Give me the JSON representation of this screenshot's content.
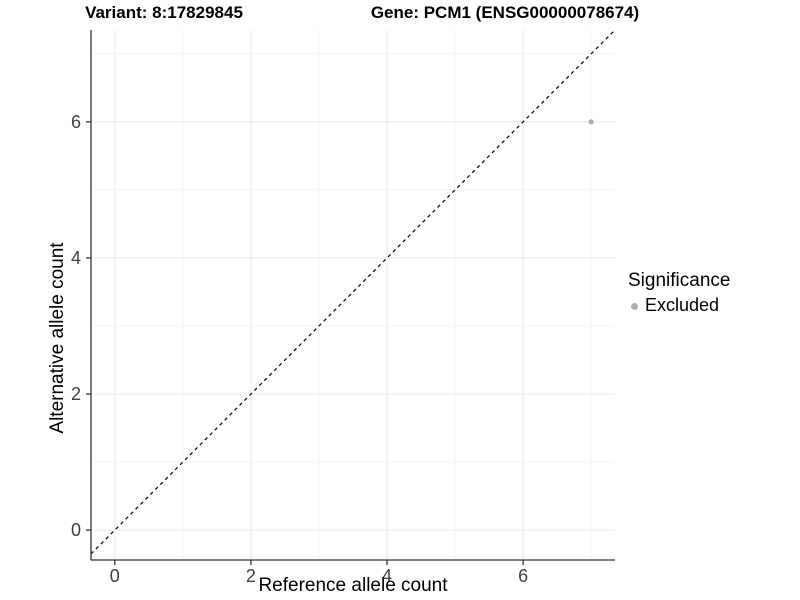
{
  "titles": {
    "variant": "Variant: 8:17829845",
    "gene": "Gene: PCM1 (ENSG00000078674)"
  },
  "legend": {
    "title": "Significance",
    "items": [
      {
        "label": "Excluded",
        "color": "#adadad"
      }
    ]
  },
  "chart_data": {
    "type": "scatter",
    "xlabel": "Reference allele count",
    "ylabel": "Alternative allele count",
    "axis": {
      "x_breaks": [
        0,
        2,
        4,
        6
      ],
      "x_tick_labels": [
        "0",
        "2",
        "4",
        "6"
      ],
      "x_minor_breaks": [
        1,
        3,
        5,
        7
      ],
      "y_breaks": [
        0,
        2,
        4,
        6
      ],
      "y_tick_labels": [
        "0",
        "2",
        "4",
        "6"
      ],
      "y_minor_breaks": [
        1,
        3,
        5,
        7
      ],
      "xlim": [
        -0.35,
        7.35
      ],
      "ylim": [
        -0.44,
        7.35
      ],
      "grid": true
    },
    "legend_position": "right",
    "series": [
      {
        "name": "Excluded",
        "color": "#adadad",
        "point_radius": 2.6,
        "points": [
          {
            "x": 7,
            "y": 6
          }
        ]
      }
    ],
    "reference_line": {
      "type": "identity",
      "slope": 1,
      "intercept": 0,
      "style": "dashed",
      "color": "#000000"
    },
    "colors": {
      "grid_major": "#e9e9e9",
      "grid_minor": "#f4f4f4",
      "axis_line": "#333333",
      "tick_mark": "#333333",
      "tick_text": "#404040"
    }
  }
}
